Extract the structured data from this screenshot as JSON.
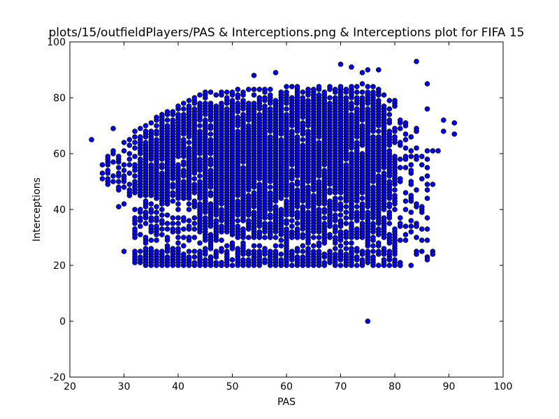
{
  "chart_data": {
    "type": "scatter",
    "title": "plots/15/outfieldPlayers/PAS & Interceptions.png & Interceptions plot for FIFA 15",
    "xlabel": "PAS",
    "ylabel": "Interceptions",
    "xlim": [
      20,
      100
    ],
    "ylim": [
      -20,
      100
    ],
    "xticks": [
      20,
      30,
      40,
      50,
      60,
      70,
      80,
      90,
      100
    ],
    "yticks": [
      -20,
      0,
      20,
      40,
      60,
      80,
      100
    ],
    "grid": false,
    "legend": "none",
    "marker_color": "#0000ff",
    "marker_edge_color": "#000000",
    "outliers": [
      {
        "x": 24,
        "y": 65
      },
      {
        "x": 75,
        "y": 0
      },
      {
        "x": 84,
        "y": 93
      },
      {
        "x": 70,
        "y": 92
      },
      {
        "x": 72,
        "y": 91
      },
      {
        "x": 74,
        "y": 89
      },
      {
        "x": 77,
        "y": 90
      },
      {
        "x": 75,
        "y": 90
      },
      {
        "x": 58,
        "y": 89
      },
      {
        "x": 54,
        "y": 88
      },
      {
        "x": 86,
        "y": 85
      },
      {
        "x": 87,
        "y": 61
      },
      {
        "x": 88,
        "y": 61
      },
      {
        "x": 89,
        "y": 72
      },
      {
        "x": 89,
        "y": 68
      },
      {
        "x": 91,
        "y": 71
      },
      {
        "x": 91,
        "y": 67
      },
      {
        "x": 87,
        "y": 49
      },
      {
        "x": 87,
        "y": 25
      },
      {
        "x": 87,
        "y": 24
      },
      {
        "x": 86,
        "y": 22
      },
      {
        "x": 85,
        "y": 25
      },
      {
        "x": 81,
        "y": 20
      },
      {
        "x": 30,
        "y": 25
      },
      {
        "x": 28,
        "y": 69
      },
      {
        "x": 29,
        "y": 41
      },
      {
        "x": 30,
        "y": 42
      },
      {
        "x": 86,
        "y": 76
      },
      {
        "x": 85,
        "y": 41
      },
      {
        "x": 84,
        "y": 34
      }
    ],
    "clusters": [
      {
        "name": "main-mass",
        "x_range": [
          26,
          85
        ],
        "y_range": [
          20,
          88
        ],
        "density": "very high"
      },
      {
        "name": "low-band",
        "x_range": [
          32,
          80
        ],
        "y_range": [
          20,
          25
        ],
        "density": "high"
      }
    ]
  }
}
